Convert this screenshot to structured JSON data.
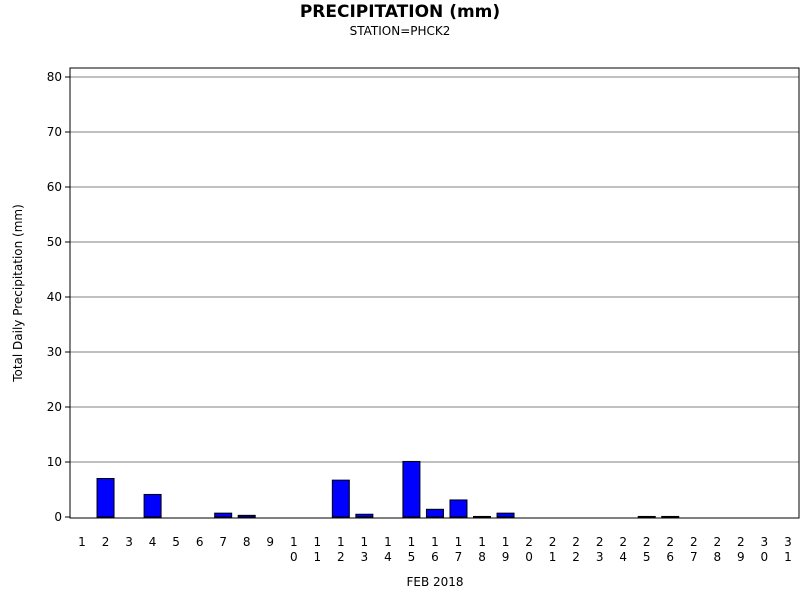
{
  "chart_data": {
    "type": "bar",
    "title": "PRECIPITATION (mm)",
    "subtitle": "STATION=PHCK2",
    "xlabel": "FEB 2018",
    "ylabel": "Total Daily Precipitation (mm)",
    "ylim": [
      0,
      80
    ],
    "yticks": [
      0,
      10,
      20,
      30,
      40,
      50,
      60,
      70,
      80
    ],
    "grid": true,
    "bar_color": "#0000ff",
    "categories": [
      "1",
      "2",
      "3",
      "4",
      "5",
      "6",
      "7",
      "8",
      "9",
      "10",
      "11",
      "12",
      "13",
      "14",
      "15",
      "16",
      "17",
      "18",
      "19",
      "20",
      "21",
      "22",
      "23",
      "24",
      "25",
      "26",
      "27",
      "28",
      "29",
      "30",
      "31"
    ],
    "values": [
      0,
      7.0,
      0,
      4.1,
      0,
      0,
      0.7,
      0.3,
      0,
      0,
      0,
      6.7,
      0.5,
      0,
      10.1,
      1.4,
      3.1,
      0.1,
      0.7,
      0,
      0,
      0,
      0,
      0,
      0.1,
      0.1,
      0,
      0,
      0,
      0,
      0
    ]
  }
}
